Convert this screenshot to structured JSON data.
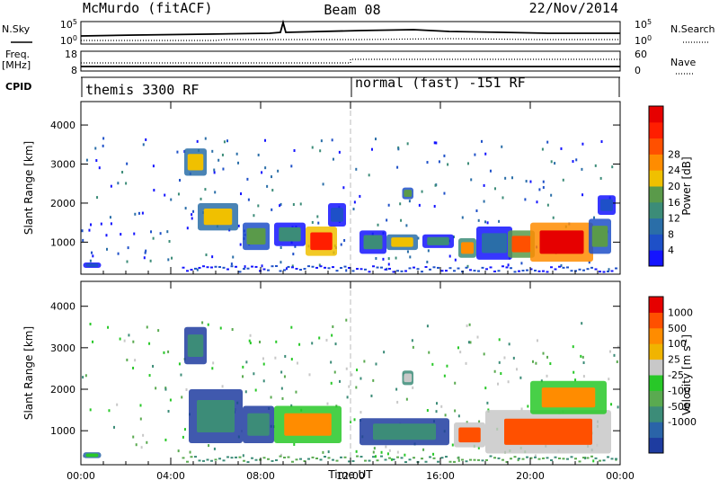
{
  "header": {
    "station": "McMurdo (fitACF)",
    "beam": "Beam 08",
    "date": "22/Nov/2014"
  },
  "summary_labels": {
    "nsky": "N.Sky",
    "nsky_hi": "10^5",
    "nsky_lo": "10^0",
    "nsearch": "N.Search",
    "nsearch_hi": "10^5",
    "nsearch_lo": "10^0",
    "freq": "Freq.",
    "freq_unit": "[MHz]",
    "freq_hi": "18",
    "freq_lo": "8",
    "nave": "Nave",
    "nave_hi": "60",
    "nave_lo": "0",
    "cpid": "CPID",
    "cpid_left": "themis 3300 RF",
    "cpid_right": "normal (fast) -151 RF"
  },
  "chart_data": [
    {
      "type": "heatmap",
      "title": "",
      "xlabel": "Time UT",
      "ylabel": "Slant Range [km]",
      "xlim": [
        0,
        24
      ],
      "ylim": [
        180,
        4600
      ],
      "x_ticks": [
        "00:00",
        "04:00",
        "08:00",
        "12:00",
        "16:00",
        "20:00",
        "00:00"
      ],
      "y_ticks": [
        "1000",
        "2000",
        "3000",
        "4000"
      ],
      "y_tick_values": [
        1000,
        2000,
        3000,
        4000
      ],
      "colorbar": {
        "label": "Power [dB]",
        "ticks": [
          "4",
          "8",
          "12",
          "16",
          "20",
          "24",
          "28"
        ],
        "colors": [
          "#1414ff",
          "#1e50c8",
          "#2a6ea8",
          "#3c8c78",
          "#5a9a4a",
          "#f0c000",
          "#ff8c00",
          "#ff5000",
          "#ff1e00",
          "#e60000"
        ]
      },
      "patches": [
        {
          "t0": 0.1,
          "t1": 0.9,
          "r0": 340,
          "r1": 480,
          "level": 1
        },
        {
          "t0": 4.6,
          "t1": 5.6,
          "r0": 2700,
          "r1": 3400,
          "level": 5
        },
        {
          "t0": 5.2,
          "t1": 7.0,
          "r0": 1300,
          "r1": 2000,
          "level": 5
        },
        {
          "t0": 7.2,
          "t1": 8.4,
          "r0": 800,
          "r1": 1500,
          "level": 4
        },
        {
          "t0": 8.6,
          "t1": 10.0,
          "r0": 900,
          "r1": 1500,
          "level": 3
        },
        {
          "t0": 10.0,
          "t1": 11.4,
          "r0": 650,
          "r1": 1400,
          "level": 8
        },
        {
          "t0": 11.0,
          "t1": 11.8,
          "r0": 1400,
          "r1": 2000,
          "level": 1
        },
        {
          "t0": 12.4,
          "t1": 13.6,
          "r0": 700,
          "r1": 1300,
          "level": 3
        },
        {
          "t0": 13.6,
          "t1": 15.0,
          "r0": 800,
          "r1": 1200,
          "level": 5
        },
        {
          "t0": 14.3,
          "t1": 14.8,
          "r0": 2100,
          "r1": 2400,
          "level": 4
        },
        {
          "t0": 15.2,
          "t1": 16.6,
          "r0": 850,
          "r1": 1200,
          "level": 3
        },
        {
          "t0": 16.8,
          "t1": 17.6,
          "r0": 600,
          "r1": 1100,
          "level": 6
        },
        {
          "t0": 17.6,
          "t1": 19.2,
          "r0": 550,
          "r1": 1400,
          "level": 2
        },
        {
          "t0": 19.0,
          "t1": 20.2,
          "r0": 600,
          "r1": 1300,
          "level": 7
        },
        {
          "t0": 20.0,
          "t1": 22.8,
          "r0": 500,
          "r1": 1500,
          "level": 9
        },
        {
          "t0": 22.6,
          "t1": 23.6,
          "r0": 700,
          "r1": 1600,
          "level": 4
        },
        {
          "t0": 23.0,
          "t1": 23.8,
          "r0": 1700,
          "r1": 2200,
          "level": 1
        }
      ]
    },
    {
      "type": "heatmap",
      "title": "",
      "xlabel": "Time UT",
      "ylabel": "Slant Range [km]",
      "xlim": [
        0,
        24
      ],
      "ylim": [
        180,
        4600
      ],
      "x_ticks": [
        "00:00",
        "04:00",
        "08:00",
        "12:00",
        "16:00",
        "20:00",
        "00:00"
      ],
      "y_ticks": [
        "1000",
        "2000",
        "3000",
        "4000"
      ],
      "y_tick_values": [
        1000,
        2000,
        3000,
        4000
      ],
      "colorbar": {
        "label": "Velocity [m s^-1]",
        "ticks": [
          "1000",
          "500",
          "100",
          "25",
          "-25",
          "-100",
          "-500",
          "-1000"
        ],
        "colors": [
          "#1e3ca0",
          "#2a64a8",
          "#3c8c78",
          "#5aaa50",
          "#28c828",
          "#c8c8c8",
          "#f0b400",
          "#ff8c00",
          "#ff5000",
          "#e60000"
        ]
      },
      "patches": [
        {
          "t0": 0.1,
          "t1": 0.9,
          "r0": 340,
          "r1": 480,
          "level": 4
        },
        {
          "t0": 4.6,
          "t1": 5.6,
          "r0": 2600,
          "r1": 3500,
          "level": 2
        },
        {
          "t0": 4.8,
          "t1": 7.2,
          "r0": 700,
          "r1": 2000,
          "level": 2
        },
        {
          "t0": 7.2,
          "t1": 8.6,
          "r0": 700,
          "r1": 1600,
          "level": 2
        },
        {
          "t0": 8.6,
          "t1": 11.6,
          "r0": 700,
          "r1": 1600,
          "level": 7
        },
        {
          "t0": 12.4,
          "t1": 16.4,
          "r0": 650,
          "r1": 1300,
          "level": 2
        },
        {
          "t0": 14.3,
          "t1": 14.8,
          "r0": 2100,
          "r1": 2450,
          "level": 5
        },
        {
          "t0": 16.6,
          "t1": 18.0,
          "r0": 600,
          "r1": 1200,
          "level": 8
        },
        {
          "t0": 18.0,
          "t1": 23.6,
          "r0": 450,
          "r1": 1500,
          "level": 8
        },
        {
          "t0": 20.0,
          "t1": 23.4,
          "r0": 1400,
          "r1": 2200,
          "level": 7
        }
      ]
    }
  ]
}
